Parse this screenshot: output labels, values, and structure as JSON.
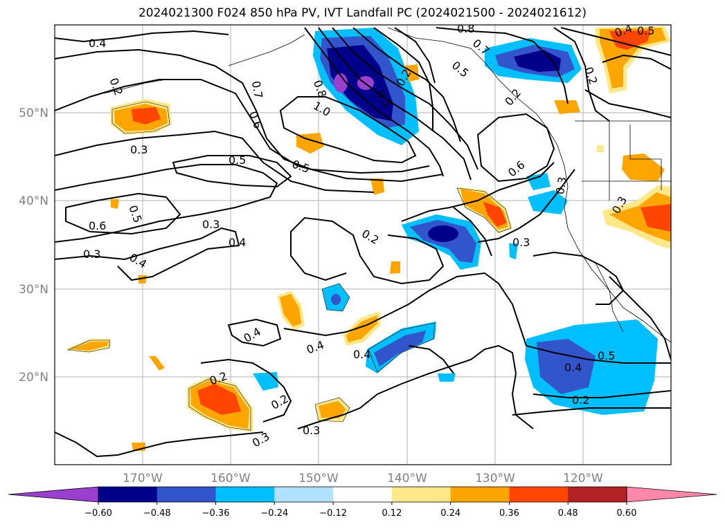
{
  "title": "2024021300 F024 850 hPa PV, IVT Landfall PC (2024021500 - 2024021612)",
  "lon_ticks": [
    "170°W",
    "160°W",
    "150°W",
    "140°W",
    "130°W",
    "120°W"
  ],
  "lat_ticks": [
    "50°N",
    "40°N",
    "30°N",
    "20°N"
  ],
  "colorbar": {
    "colors": [
      "#9b3fcf",
      "#00008b",
      "#3355cc",
      "#00bfff",
      "#b0e2ff",
      "#ffffff",
      "#ffe88a",
      "#ffa500",
      "#ff4500",
      "#b22222",
      "#ff88aa"
    ],
    "tick_labels": [
      "−0.60",
      "−0.48",
      "−0.36",
      "−0.24",
      "−0.12",
      "0.12",
      "0.24",
      "0.36",
      "0.48",
      "0.60"
    ]
  },
  "contour_labels": [
    "0.4",
    "0.2",
    "0.7",
    "0.6",
    "0.8",
    "1.0",
    "0.3",
    "0.5",
    "0.5",
    "0.6",
    "0.5",
    "0.3",
    "0.4",
    "0.3",
    "0.4",
    "0.2",
    "0.3",
    "0.4",
    "0.4",
    "0.4",
    "0.2",
    "0.2",
    "0.3",
    "0.3",
    "0.6",
    "0.3",
    "0.3",
    "0.2",
    "0.5",
    "0.4",
    "0.2",
    "0.8",
    "0.7",
    "0.5",
    "0.2",
    "0.3",
    "0.4",
    "0.5",
    "0.2"
  ]
}
